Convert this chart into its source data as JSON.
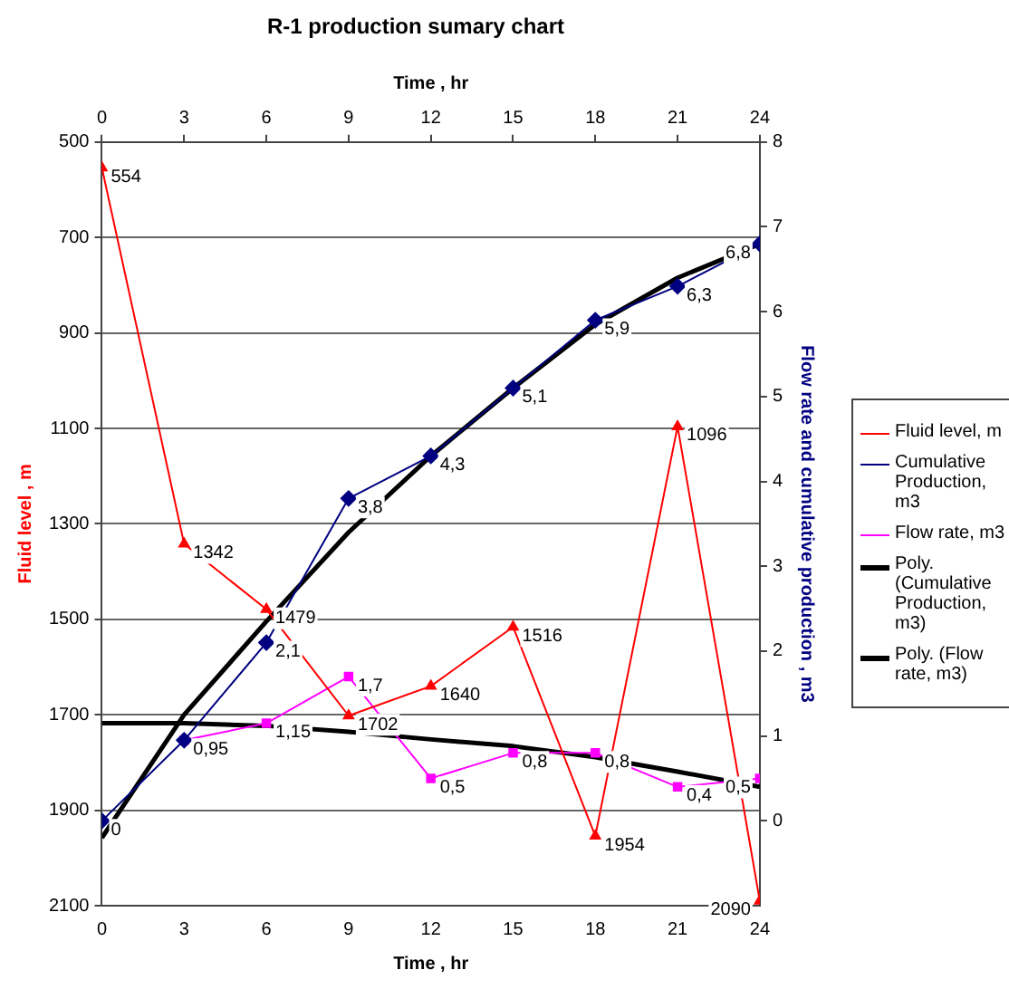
{
  "chart_data": {
    "type": "line",
    "title": "R-1 production sumary chart",
    "xlabel": "Time , hr",
    "x2label": "Time , hr",
    "ylabel": "Fluid level , m",
    "y2label": "Flow rate and cumulative production , m3",
    "x": [
      0,
      3,
      6,
      9,
      12,
      15,
      18,
      21,
      24
    ],
    "xlim": [
      0,
      24
    ],
    "xticks": [
      0,
      3,
      6,
      9,
      12,
      15,
      18,
      21,
      24
    ],
    "x2lim": [
      0,
      24
    ],
    "x2ticks": [
      0,
      3,
      6,
      9,
      12,
      15,
      18,
      21,
      24
    ],
    "ylim": [
      2100,
      500
    ],
    "yticks": [
      500,
      700,
      900,
      1100,
      1300,
      1500,
      1700,
      1900,
      2100
    ],
    "y2lim": [
      -1,
      8
    ],
    "y2ticks": [
      0,
      1,
      2,
      3,
      4,
      5,
      6,
      7,
      8
    ],
    "grid": "y",
    "legend": "right",
    "line_style": "solid",
    "series": [
      {
        "name": "Fluid level, m",
        "color": "#ff0000",
        "marker": "triangle",
        "values": [
          554,
          1342,
          1479,
          1702,
          1640,
          1516,
          1954,
          1096,
          2090
        ],
        "value_labels": [
          "554",
          "1342",
          "1479",
          "1702",
          "1640",
          "1516",
          "1954",
          "1096",
          "2090"
        ]
      },
      {
        "name": "Cumulative Production, m3",
        "color": "#000080",
        "marker": "diamond",
        "axis": "y2",
        "values": [
          0,
          0.95,
          2.1,
          3.8,
          4.3,
          5.1,
          5.9,
          6.3,
          6.8
        ],
        "value_labels": [
          "0",
          null,
          "2,1",
          "3,8",
          "4,3",
          "5,1",
          "5,9",
          "6,3",
          "6,8"
        ]
      },
      {
        "name": "Flow rate, m3",
        "color": "#ff00ff",
        "marker": "square",
        "axis": "y2",
        "values": [
          null,
          0.95,
          1.15,
          1.7,
          0.5,
          0.8,
          0.8,
          0.4,
          0.5
        ],
        "value_labels": [
          null,
          "0,95",
          "1,15",
          "1,7",
          "0,5",
          "0,8",
          "0,8",
          "0,4",
          "0,5"
        ]
      },
      {
        "name": "Poly. (Cumulative Production, m3)",
        "color": "#000000",
        "marker": "none",
        "axis": "y2",
        "values": [
          -0.2,
          1.25,
          2.35,
          3.4,
          4.3,
          5.1,
          5.85,
          6.4,
          6.8
        ]
      },
      {
        "name": "Poly. (Flow rate, m3)",
        "color": "#000000",
        "marker": "none",
        "axis": "y2",
        "values": [
          1.15,
          1.15,
          1.12,
          1.05,
          0.96,
          0.88,
          0.75,
          0.58,
          0.4
        ]
      }
    ]
  }
}
